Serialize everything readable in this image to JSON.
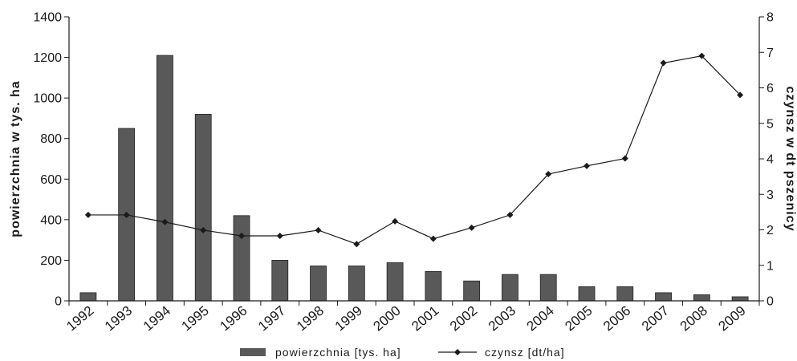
{
  "chart_data": {
    "type": "bar",
    "categories": [
      "1992",
      "1993",
      "1994",
      "1995",
      "1996",
      "1997",
      "1998",
      "1999",
      "2000",
      "2001",
      "2002",
      "2003",
      "2004",
      "2005",
      "2006",
      "2007",
      "2008",
      "2009"
    ],
    "series": [
      {
        "name": "powierzchnia [tys. ha]",
        "type": "bar",
        "axis": "left",
        "color": "#595959",
        "values": [
          40,
          850,
          1210,
          920,
          420,
          200,
          172,
          172,
          188,
          145,
          98,
          130,
          130,
          70,
          70,
          40,
          30,
          20
        ]
      },
      {
        "name": "czynsz [dt/ha]",
        "type": "line",
        "axis": "right",
        "color": "#1a1a1a",
        "marker": "diamond",
        "values": [
          2.42,
          2.42,
          2.22,
          1.99,
          1.83,
          1.83,
          1.99,
          1.6,
          2.24,
          1.75,
          2.06,
          2.42,
          3.57,
          3.8,
          4.01,
          6.7,
          6.9,
          5.8
        ]
      }
    ],
    "ylabel": "powierzchnia w tys. ha",
    "y2label": "czynsz w dt pszenicy",
    "ylim": [
      0,
      1400
    ],
    "y2lim": [
      0,
      8
    ],
    "yticks": [
      0,
      200,
      400,
      600,
      800,
      1000,
      1200,
      1400
    ],
    "y2ticks": [
      0,
      1,
      2,
      3,
      4,
      5,
      6,
      7,
      8
    ],
    "grid": false,
    "legend": "bottom-center"
  }
}
